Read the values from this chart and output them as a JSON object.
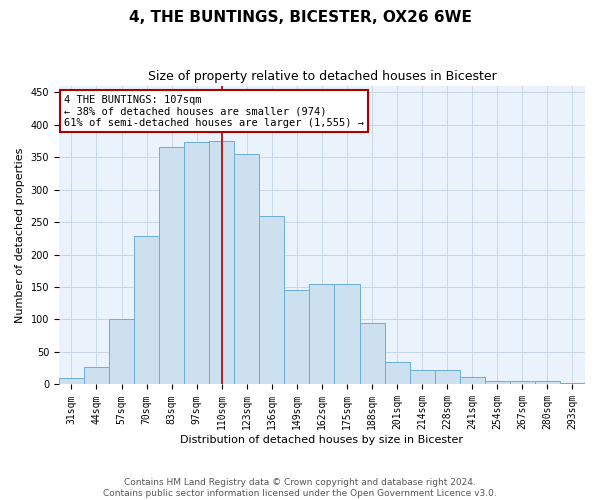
{
  "title": "4, THE BUNTINGS, BICESTER, OX26 6WE",
  "subtitle": "Size of property relative to detached houses in Bicester",
  "xlabel": "Distribution of detached houses by size in Bicester",
  "ylabel": "Number of detached properties",
  "categories": [
    "31sqm",
    "44sqm",
    "57sqm",
    "70sqm",
    "83sqm",
    "97sqm",
    "110sqm",
    "123sqm",
    "136sqm",
    "149sqm",
    "162sqm",
    "175sqm",
    "188sqm",
    "201sqm",
    "214sqm",
    "228sqm",
    "241sqm",
    "254sqm",
    "267sqm",
    "280sqm",
    "293sqm"
  ],
  "values": [
    10,
    27,
    100,
    229,
    365,
    373,
    375,
    355,
    260,
    145,
    154,
    154,
    95,
    34,
    22,
    22,
    11,
    6,
    5,
    5,
    3
  ],
  "bar_color": "#cde0f0",
  "bar_edge_color": "#6aaed6",
  "property_line_color": "#aa0000",
  "annotation_text": "4 THE BUNTINGS: 107sqm\n← 38% of detached houses are smaller (974)\n61% of semi-detached houses are larger (1,555) →",
  "annotation_box_color": "#aa0000",
  "annotation_fill_color": "#ffffff",
  "footer_line1": "Contains HM Land Registry data © Crown copyright and database right 2024.",
  "footer_line2": "Contains public sector information licensed under the Open Government Licence v3.0.",
  "ylim": [
    0,
    460
  ],
  "yticks": [
    0,
    50,
    100,
    150,
    200,
    250,
    300,
    350,
    400,
    450
  ],
  "grid_color": "#c8d8e8",
  "background_color": "#eaf2fb",
  "title_fontsize": 11,
  "subtitle_fontsize": 9,
  "axis_label_fontsize": 8,
  "tick_fontsize": 7,
  "annotation_fontsize": 7.5,
  "footer_fontsize": 6.5
}
